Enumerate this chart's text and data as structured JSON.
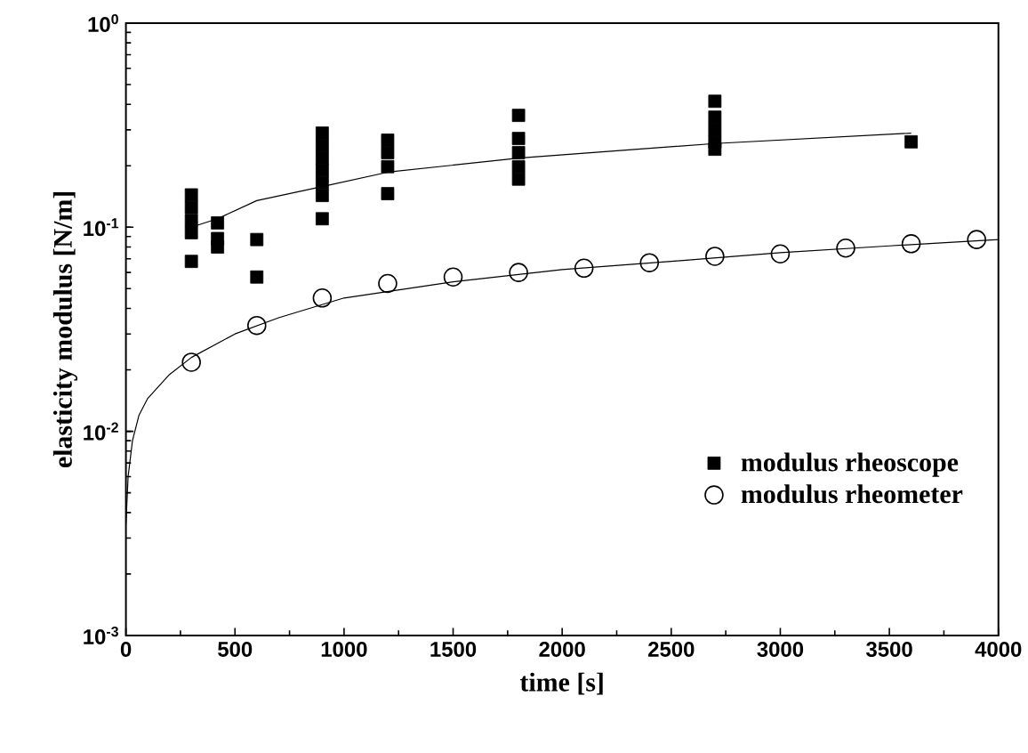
{
  "chart_data": {
    "type": "scatter",
    "xlabel": "time [s]",
    "ylabel": "elasticity modulus [N/m]",
    "log": "y",
    "xlim": [
      0,
      4000
    ],
    "xticks": [
      0,
      500,
      1000,
      1500,
      2000,
      2500,
      3000,
      3500,
      4000
    ],
    "ylim": [
      0.001,
      1
    ],
    "yticks": [
      {
        "value": 0.001,
        "label": "10$^{-3}$"
      },
      {
        "value": 0.01,
        "label": "10$^{-2}$"
      },
      {
        "value": 0.1,
        "label": "10$^{-1}$"
      },
      {
        "value": 1,
        "label": "10$^{0}$"
      }
    ],
    "legend": "bottom right",
    "grid": false,
    "series": [
      {
        "name": "modulus rheoscope",
        "marker": "square",
        "color": "#000000",
        "x": [
          300,
          300,
          300,
          300,
          300,
          420,
          420,
          420,
          600,
          600,
          900,
          900,
          900,
          900,
          900,
          900,
          900,
          1200,
          1200,
          1200,
          1200,
          1800,
          1800,
          1800,
          1800,
          1800,
          2700,
          2700,
          2700,
          2700,
          2700,
          3600
        ],
        "values": [
          0.144,
          0.125,
          0.108,
          0.094,
          0.068,
          0.105,
          0.088,
          0.08,
          0.087,
          0.057,
          0.289,
          0.251,
          0.218,
          0.19,
          0.165,
          0.143,
          0.11,
          0.267,
          0.232,
          0.198,
          0.146,
          0.353,
          0.272,
          0.232,
          0.198,
          0.172,
          0.414,
          0.346,
          0.301,
          0.262,
          0.241,
          0.262
        ]
      },
      {
        "name": "modulus rheometer",
        "marker": "circle",
        "color": "#000000",
        "x": [
          300,
          600,
          900,
          1200,
          1500,
          1800,
          2100,
          2400,
          2700,
          3000,
          3300,
          3600,
          3900
        ],
        "values": [
          0.0218,
          0.033,
          0.045,
          0.053,
          0.057,
          0.06,
          0.063,
          0.067,
          0.072,
          0.074,
          0.079,
          0.083,
          0.087
        ]
      },
      {
        "type": "line",
        "marker": "none",
        "color": "#000000",
        "x": [
          300,
          420,
          600,
          900,
          1200,
          1800,
          2700,
          3600
        ],
        "values": [
          0.1,
          0.11,
          0.135,
          0.158,
          0.186,
          0.218,
          0.257,
          0.289
        ]
      },
      {
        "type": "line",
        "marker": "none",
        "color": "#000000",
        "x": [
          0,
          10,
          30,
          60,
          100,
          200,
          300,
          500,
          700,
          1000,
          1500,
          2000,
          2500,
          3000,
          3500,
          4000
        ],
        "values": [
          0.0035,
          0.006,
          0.009,
          0.012,
          0.0145,
          0.019,
          0.023,
          0.03,
          0.036,
          0.045,
          0.054,
          0.062,
          0.068,
          0.075,
          0.081,
          0.087
        ]
      }
    ]
  }
}
